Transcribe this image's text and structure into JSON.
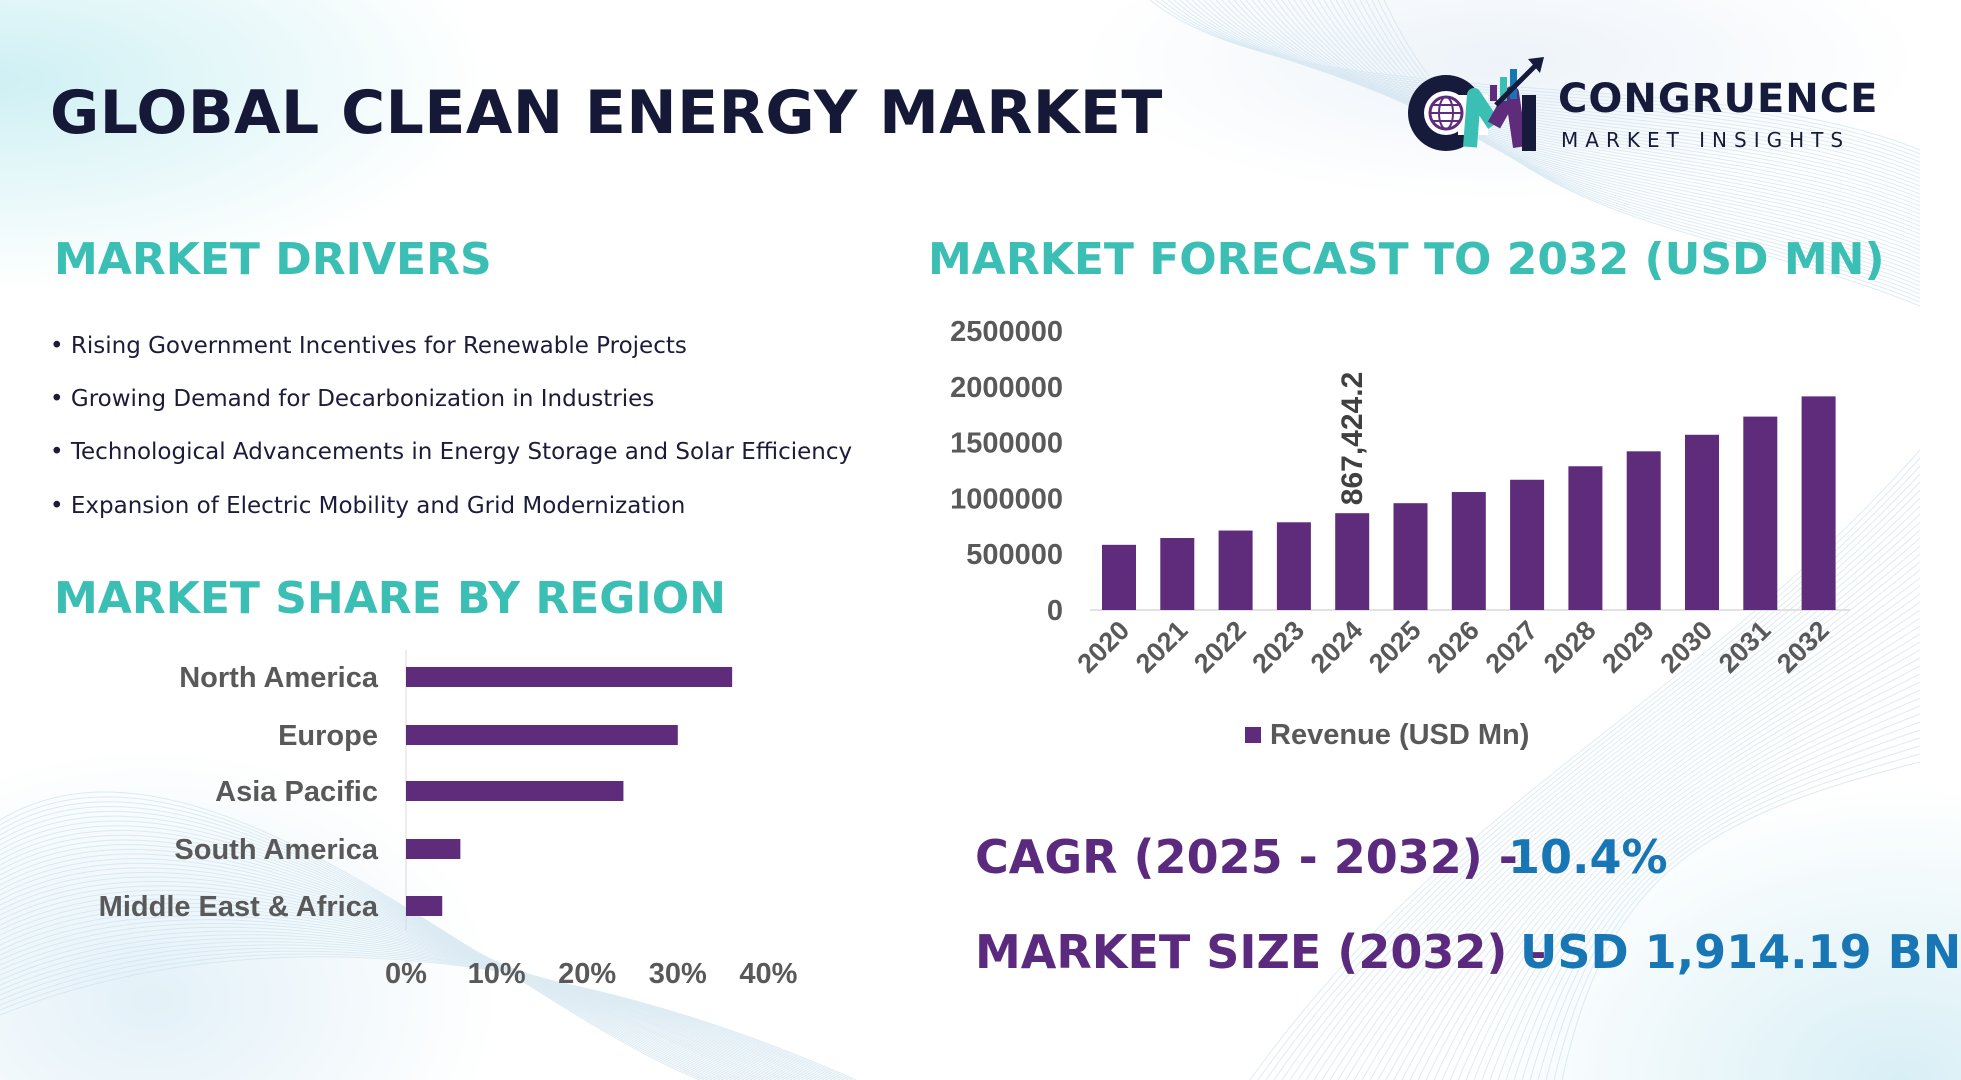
{
  "header": {
    "title": "GLOBAL CLEAN ENERGY MARKET",
    "logo": {
      "name": "CONGRUENCE",
      "subtitle": "MARKET INSIGHTS",
      "mark": "CM"
    }
  },
  "drivers": {
    "heading": "MARKET DRIVERS",
    "items": [
      "• Rising Government Incentives for Renewable Projects",
      "• Growing Demand for Decarbonization in Industries",
      "• Technological Advancements in Energy Storage and Solar Efficiency",
      "• Expansion of Electric Mobility and Grid Modernization"
    ]
  },
  "region": {
    "heading": "MARKET SHARE BY REGION"
  },
  "forecast": {
    "heading": "MARKET FORECAST TO 2032 (USD MN)"
  },
  "stats": {
    "cagr_label": "CAGR (2025 - 2032) -",
    "cagr_value": "10.4%",
    "size_label": "MARKET SIZE (2032) –",
    "size_value": "USD 1,914.19 BN"
  },
  "colors": {
    "bar": "#5f2c7c",
    "heading": "#3bbfb4",
    "title": "#151836",
    "stat_label": "#5b2a7e",
    "stat_value": "#1976b5",
    "axis_text": "#595959"
  },
  "chart_data": [
    {
      "type": "bar",
      "orientation": "horizontal",
      "categories": [
        "North America",
        "Europe",
        "Asia Pacific",
        "South America",
        "Middle East & Africa"
      ],
      "values": [
        36,
        30,
        24,
        6,
        4
      ],
      "unit": "%",
      "xlim": [
        0,
        40
      ],
      "ticks": [
        "0%",
        "10%",
        "20%",
        "30%",
        "40%"
      ],
      "grid": false
    },
    {
      "type": "bar",
      "categories": [
        "2020",
        "2021",
        "2022",
        "2023",
        "2024",
        "2025",
        "2026",
        "2027",
        "2028",
        "2029",
        "2030",
        "2031",
        "2032"
      ],
      "series": [
        {
          "name": "Revenue (USD Mn)",
          "values": [
            584000,
            645000,
            712000,
            786000,
            867424.2,
            957000,
            1057000,
            1167000,
            1288000,
            1422000,
            1570000,
            1733000,
            1914190
          ]
        }
      ],
      "data_labels": [
        {
          "category": "2024",
          "text": "867,424.2"
        }
      ],
      "ylim": [
        0,
        2500000
      ],
      "yticks": [
        "0",
        "500000",
        "1000000",
        "1500000",
        "2000000",
        "2500000"
      ],
      "legend": "bottom",
      "grid": false
    }
  ]
}
